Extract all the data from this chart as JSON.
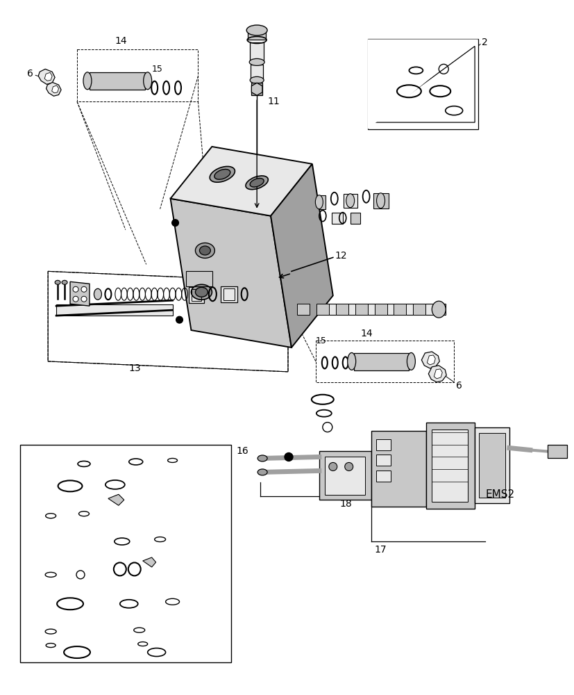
{
  "bg_color": "#ffffff",
  "lc": "#000000",
  "figsize": [
    8.28,
    10.0
  ],
  "dpi": 100,
  "gray_light": "#e8e8e8",
  "gray_mid": "#c8c8c8",
  "gray_dark": "#a0a0a0"
}
